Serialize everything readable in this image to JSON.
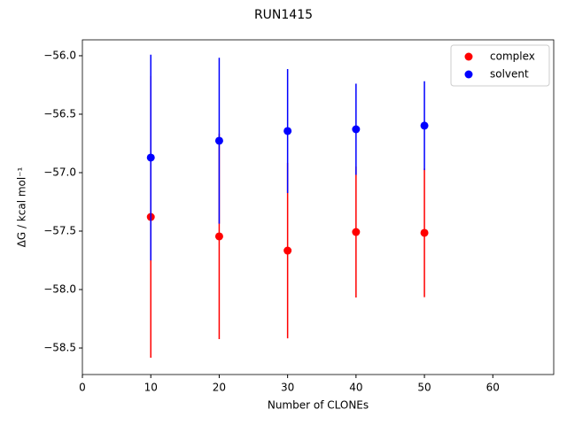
{
  "chart_data": {
    "type": "errorbar-scatter",
    "title": "RUN1415",
    "x_label": "Number of CLONEs",
    "y_label": "ΔG / kcal mol⁻¹",
    "xlim": [
      0,
      68.9
    ],
    "xticks": [
      0,
      10,
      20,
      30,
      40,
      50,
      60
    ],
    "ylim": [
      -58.727,
      -55.864
    ],
    "yticks": [
      {
        "value": -56.0,
        "label": "−56.0"
      },
      {
        "value": -56.5,
        "label": "−56.5"
      },
      {
        "value": -57.0,
        "label": "−57.0"
      },
      {
        "value": -57.5,
        "label": "−57.5"
      },
      {
        "value": -58.0,
        "label": "−58.0"
      },
      {
        "value": -58.5,
        "label": "−58.5"
      }
    ],
    "legend": "upper right",
    "series": [
      {
        "name": "complex",
        "color": "#ff0000",
        "x": [
          10,
          20,
          30,
          40,
          50
        ],
        "values": [
          -57.379,
          -57.545,
          -57.667,
          -57.508,
          -57.515
        ],
        "errors": [
          1.204,
          0.879,
          0.75,
          0.56,
          0.55
        ]
      },
      {
        "name": "solvent",
        "color": "#0000ff",
        "x": [
          10,
          20,
          30,
          40,
          50
        ],
        "values": [
          -56.871,
          -56.727,
          -56.644,
          -56.629,
          -56.598
        ],
        "errors": [
          0.88,
          0.71,
          0.53,
          0.39,
          0.38
        ]
      }
    ]
  }
}
